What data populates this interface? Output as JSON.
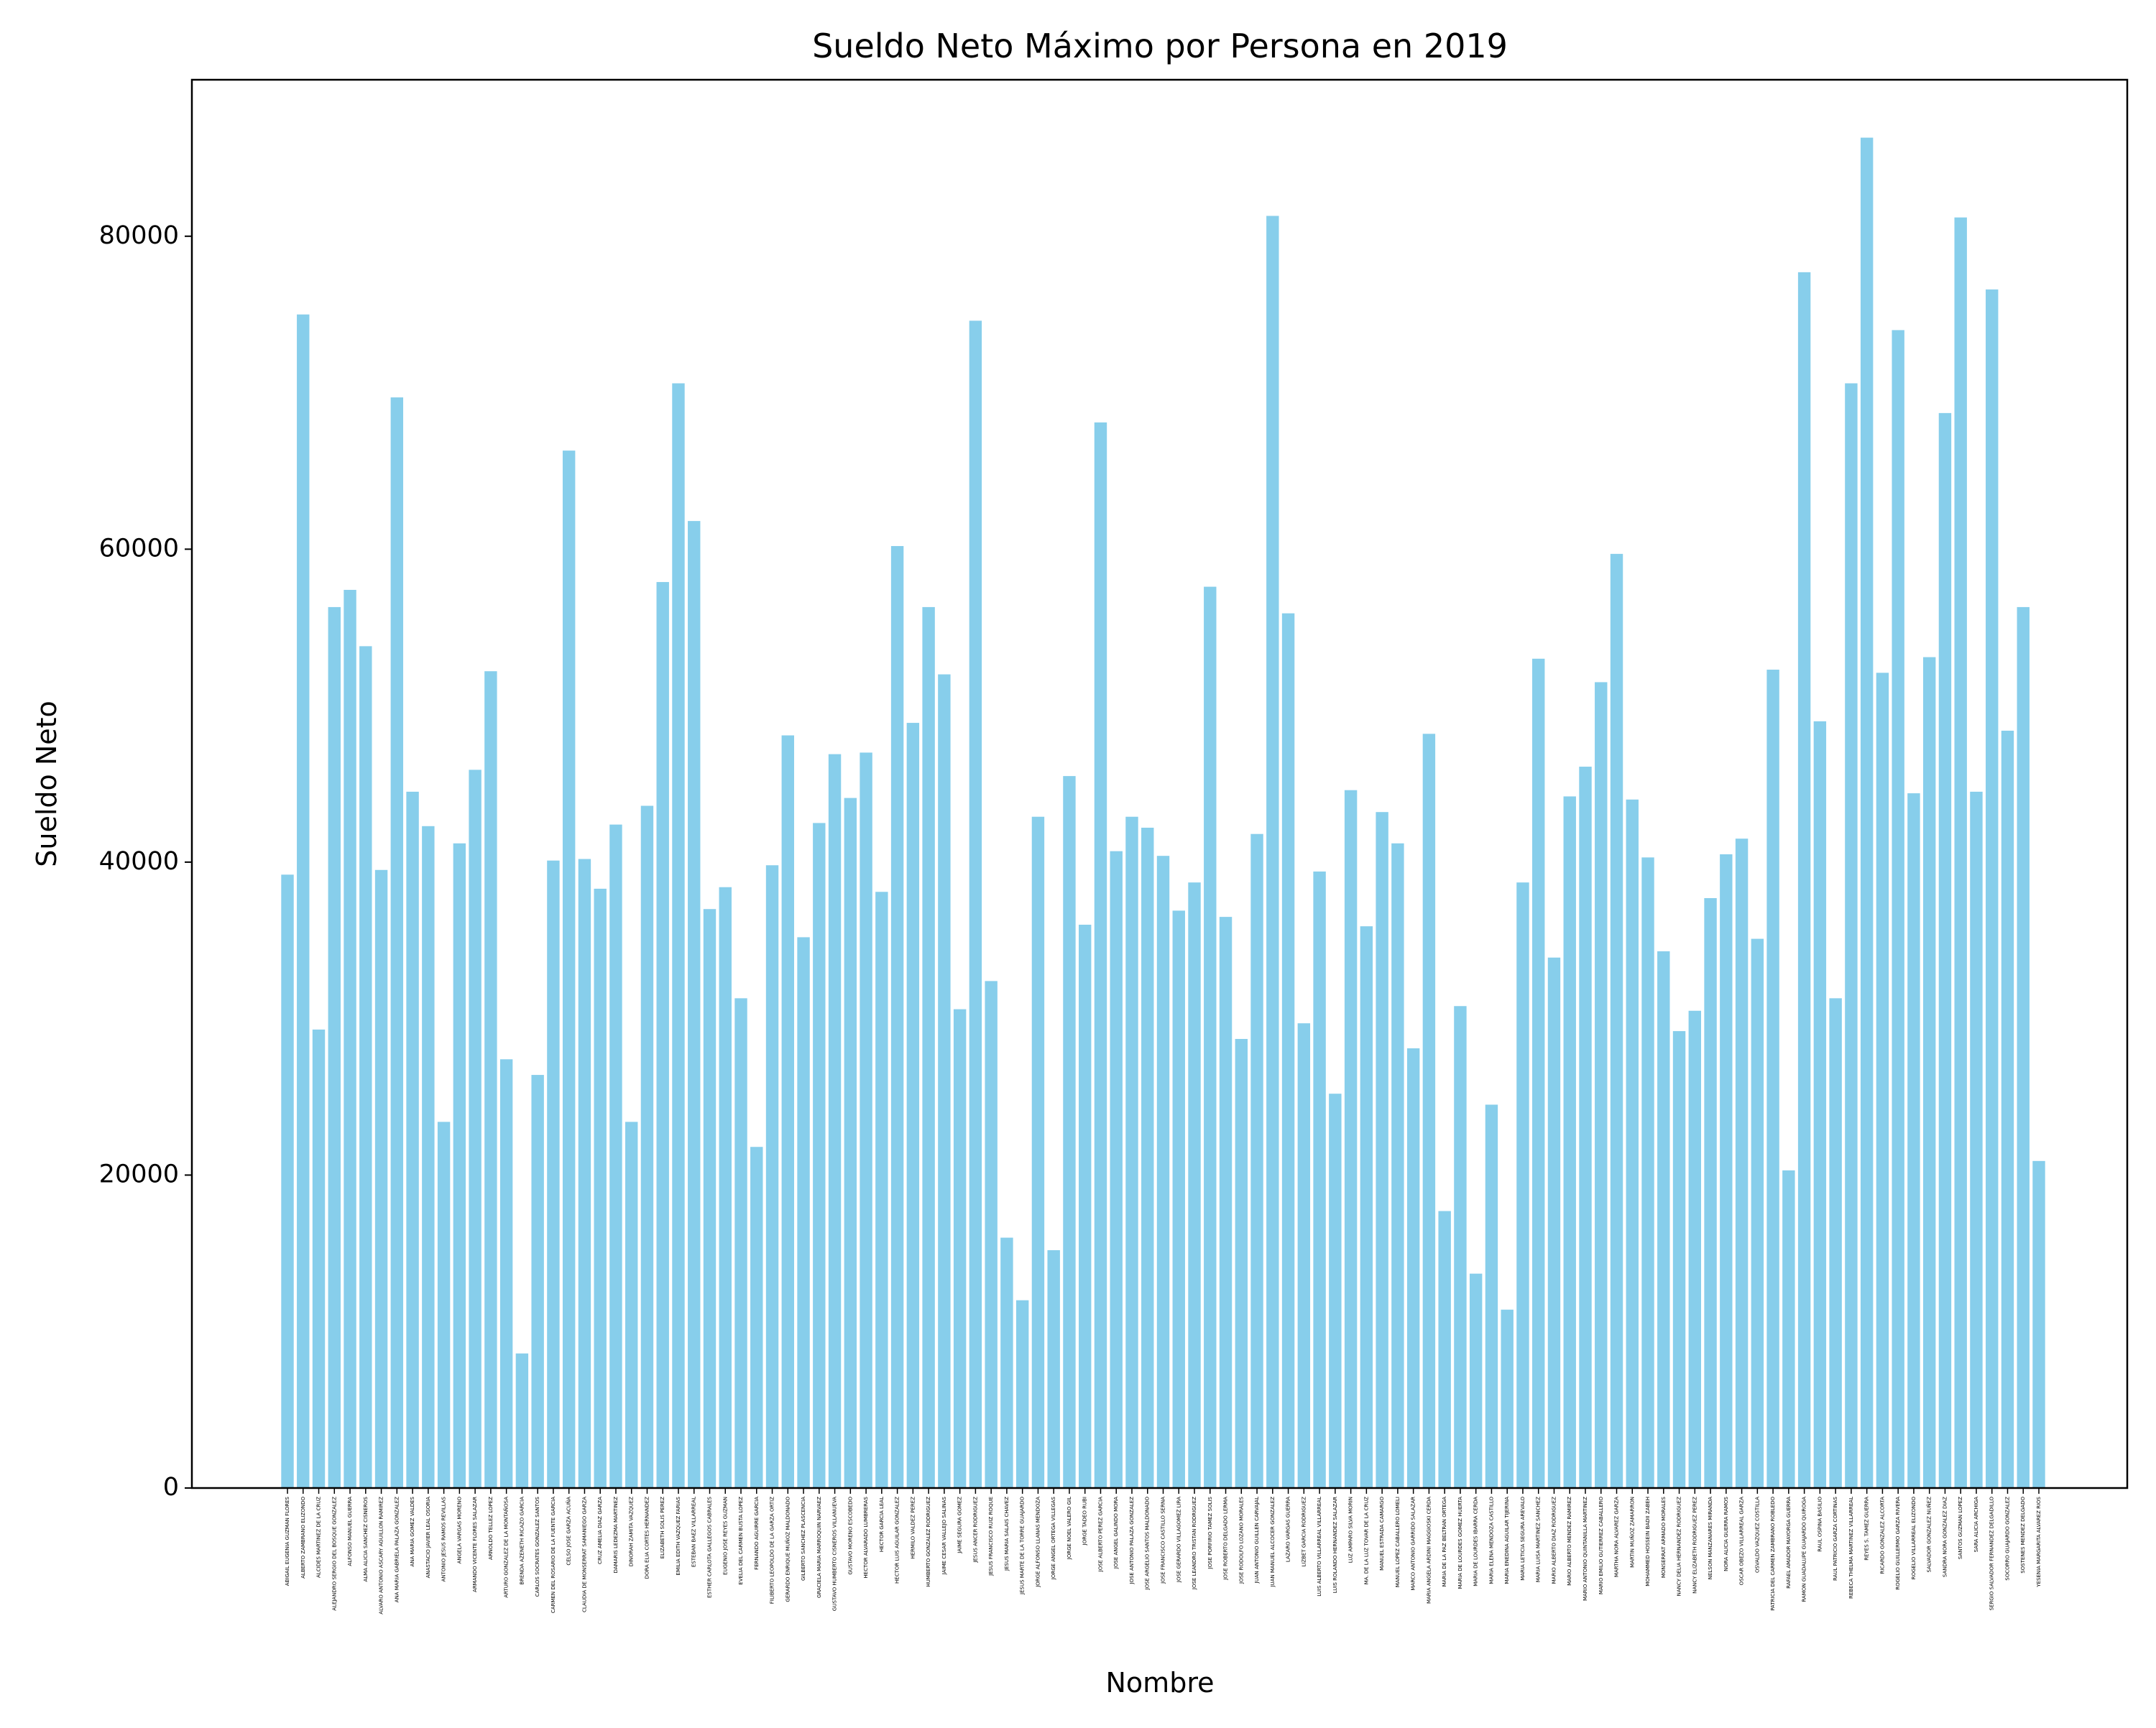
{
  "chart_data": {
    "type": "bar",
    "title": "Sueldo Neto Máximo por Persona en 2019",
    "xlabel": "Nombre",
    "ylabel": "Sueldo Neto",
    "ylim": [
      0,
      90000
    ],
    "yticks": [
      0,
      20000,
      40000,
      60000,
      80000
    ],
    "ytick_labels": [
      "0",
      "20000",
      "40000",
      "60000",
      "80000"
    ],
    "grid": false,
    "bar_color": "#87CEEB",
    "categories": [
      "ABIGAIL EUGENIA GUZMAN FLORES",
      "ALBERTO ZAMBRANO ELIZONDO",
      "ALCIDES MARTINEZ DE LA CRUZ",
      "ALEJANDRO SERGIO DEL BOSQUE GONZALEZ",
      "ALFONSO MANUEL GUERRA",
      "ALMA ALICIA SANCHEZ CISNEROS",
      "ALVARO ANTONIO ASCARY AGUILLON RAMIREZ",
      "ANA MARIA GABRIELA PALAZA GONZALEZ",
      "ANA MARIA GOMEZ VALDES",
      "ANASTACIO JAVIER LEAL OSORIA",
      "ANTONIO JESUS RAMOS REVILLAS",
      "ANGELA VARGAS MORENO",
      "ARMANDO VICENTE FLORES SALAZAR",
      "ARNOLDO TELLEZ LOPEZ",
      "ARTURO GONZALEZ DE LA MONTAÑOSA",
      "BRENDA AZENETH RICAZO GARCIA",
      "CARLOS SOCRATES GONZALEZ SANTOS",
      "CARMEN DEL ROSARIO DE LA FUENTE GARCIA",
      "CELSO JOSE GARZA ACUÑA",
      "CLAUDIA DE MONSERRAT SAMANIEGO GARZA",
      "CRUZ AMELIA DIAZ GARZA",
      "DAMARIS LEDEZMA MARTINEZ",
      "DINORAH ZAMITA VAZQUEZ",
      "DORA ELIA CORTES HERNANDEZ",
      "ELIZABETH SOLIS PEREZ",
      "EMILIA EDITH VAZQUEZ FARIAS",
      "ESTEBAN BAEZ VILLARREAL",
      "ESTHER CARLOTA GALLEGOS CABRALES",
      "EUGENIO JOSE REYES GUZMAN",
      "EVELIA DEL CARMEN BUSTA LOPEZ",
      "FERNANDO AGUIRRE GARCIA",
      "FILIBERTO LEOPOLDO DE LA GARZA ORTIZ",
      "GERARDO ENRIQUE MUÑOZ MALDONADO",
      "GILBERTO SANCHEZ PLASCENCIA",
      "GRACIELA MARIA MARROQUIN NARVAEZ",
      "GUSTAVO HUMBERTO CISNEROS VILLANUEVA",
      "GUSTAVO MORENO ESCOBEDO",
      "HECTOR ALVARADO LUMBRERAS",
      "HECTOR GARCIA LEAL",
      "HECTOR LUIS AGUILAR GONZALEZ",
      "HERMILO VALDEZ PEREZ",
      "HUMBERTO GONZALEZ RODRIGUEZ",
      "JAIME CESAR VALLEJO SALINAS",
      "JAIME SEGURA GOMEZ",
      "JESUS ANCER RODRIGUEZ",
      "JESUS FRANCISCO RUIZ ROQUE",
      "JESUS MARIA SALAIS CHAVEZ",
      "JESUS MARTE DE LA TORRE GUAJARDO",
      "JORGE ALFONSO LLANAS MENDOZA",
      "JORGE ANGEL ORTEGA VILLEGAS",
      "JORGE NOEL VALERO GIL",
      "JORGE TADEO RUBI",
      "JOSE ALBERTO PEREZ GARCIA",
      "JOSE ANGEL GALINDO MORA",
      "JOSE ANTONIO PALAZA GONZALEZ",
      "JOSE ARGELIO SANTOS MALDONADO",
      "JOSE FRANCISCO CASTILLO SERNA",
      "JOSE GERARDO VILLAGOMEZ LIRA",
      "JOSE LEANDRO TRISTAN RODRIGUEZ",
      "JOSE PORFIRIO TAMEZ SOLIS",
      "JOSE ROBERTO DELGADO LERMA",
      "JOSE RODOLFO LOZANO MORALES",
      "JUAN ANTONIO GUILLEN CARVAJAL",
      "JUAN MANUEL ALCOCER GONZALEZ",
      "LAZARO VARGAS GUERRA",
      "LIZBET GARCIA RODRIGUEZ",
      "LUIS ALBERTO VILLARREAL VILLARREAL",
      "LUIS ROLANDO HERNANDEZ SALAZAR",
      "LUZ AMPARO SILVA MORIN",
      "MA. DE LA LUZ TOVAR DE LA CRUZ",
      "MANUEL ESTRADA CAMARGO",
      "MANUEL LOPEZ CABALLERO LOMELI",
      "MARCO ANTONIO GARRIDO SALAZAR",
      "MARIA ANGELA ARDINI MAGGIOSKI CERDA",
      "MARIA DE LA PAZ BELTRAN ORTEGA",
      "MARIA DE LOURDES GOMEZ HUERTA",
      "MARIA DE LOURDES IBARRA CERDA",
      "MARIA ELENA MENDOZA CASTILLO",
      "MARIA ENEDINA AGUILAR TIJERINA",
      "MARIA LETICIA SEGURA AREVALO",
      "MARIA LUISA MARTINEZ SANCHEZ",
      "MARIO ALBERTO DIAZ RODRIGUEZ",
      "MARIO ALBERTO MENDEZ RAMIREZ",
      "MARIO ANTONIO QUINTANILLA MARTINEZ",
      "MARIO EMILIO GUTIERREZ CABALLERO",
      "MARTHA NORA ALVAREZ GARZA",
      "MARTIN MUÑOZ ZAMARRON",
      "MOHAMMED HOSSEIN BADII ZABEH",
      "MONSERRAT ARMADO MORALES",
      "NANCY DELIA HERNANDEZ RODRIGUEZ",
      "NANCY ELIZABETH RODRIGUEZ PEREZ",
      "NELSON MANZANARES MIRANDA",
      "NORA ALICIA GUERRA RAMOS",
      "OSCAR OBEZO VILLARREAL GARZA",
      "OSVALDO VAZQUEZ COSTILLA",
      "PATRICIA DEL CARMEN ZAMBRANO ROBLEDO",
      "RAFAEL AMADOR MAYORGA GUERRA",
      "RAMON GUADALUPE GUAJARDO QUIROGA",
      "RAUL OSPINA BASILIO",
      "RAUL PATRICIO GARZA CORTINAS",
      "REBECA THELMA MARTINEZ VILLARREAL",
      "REYES S. TAMEZ GUERRA",
      "RICARDO GONZALEZ ALCORTA",
      "ROGELIO GUILLERMO GARZA RIVERA",
      "ROGELIO VILLARREAL ELIZONDO",
      "SALVADOR GONZALEZ NUÑEZ",
      "SANDRA NORA GONZALEZ DIAZ",
      "SANTOS GUZMAN LOPEZ",
      "SARA ALICIA ARCHIGA",
      "SERGIO SALVADOR FERNANDEZ DELGADILLO",
      "SOCORRO GUAJARDO GONZALEZ",
      "SOSTENES MENDEZ DELGADO",
      "YESENIA MARGARITA ALVAREZ RIOS"
    ],
    "values": [
      39200,
      75000,
      29300,
      56300,
      57400,
      53800,
      39500,
      69700,
      44500,
      42300,
      23400,
      41200,
      45900,
      52200,
      27400,
      8600,
      26400,
      40100,
      66300,
      40200,
      38300,
      42400,
      23400,
      43600,
      57900,
      70600,
      61800,
      37000,
      38400,
      31300,
      21800,
      39800,
      48100,
      35200,
      42500,
      46900,
      44100,
      47000,
      38100,
      60200,
      48900,
      56300,
      52000,
      30600,
      74600,
      32400,
      16000,
      12000,
      42900,
      15200,
      45500,
      36000,
      68100,
      40700,
      42900,
      42200,
      40400,
      36900,
      38700,
      57600,
      36500,
      28700,
      41800,
      81300,
      55900,
      29700,
      39400,
      25200,
      44600,
      35900,
      43200,
      41200,
      28100,
      48200,
      17700,
      30800,
      13700,
      24500,
      11400,
      38700,
      53000,
      33900,
      44200,
      46100,
      51500,
      59700,
      44000,
      40300,
      34300,
      29200,
      30500,
      37700,
      40500,
      41500,
      35100,
      52300,
      20300,
      77700,
      49000,
      31300,
      70600,
      86300,
      52100,
      74000,
      44400,
      53100,
      68700,
      81200,
      44500,
      76600,
      48400,
      56300,
      20900
    ]
  }
}
